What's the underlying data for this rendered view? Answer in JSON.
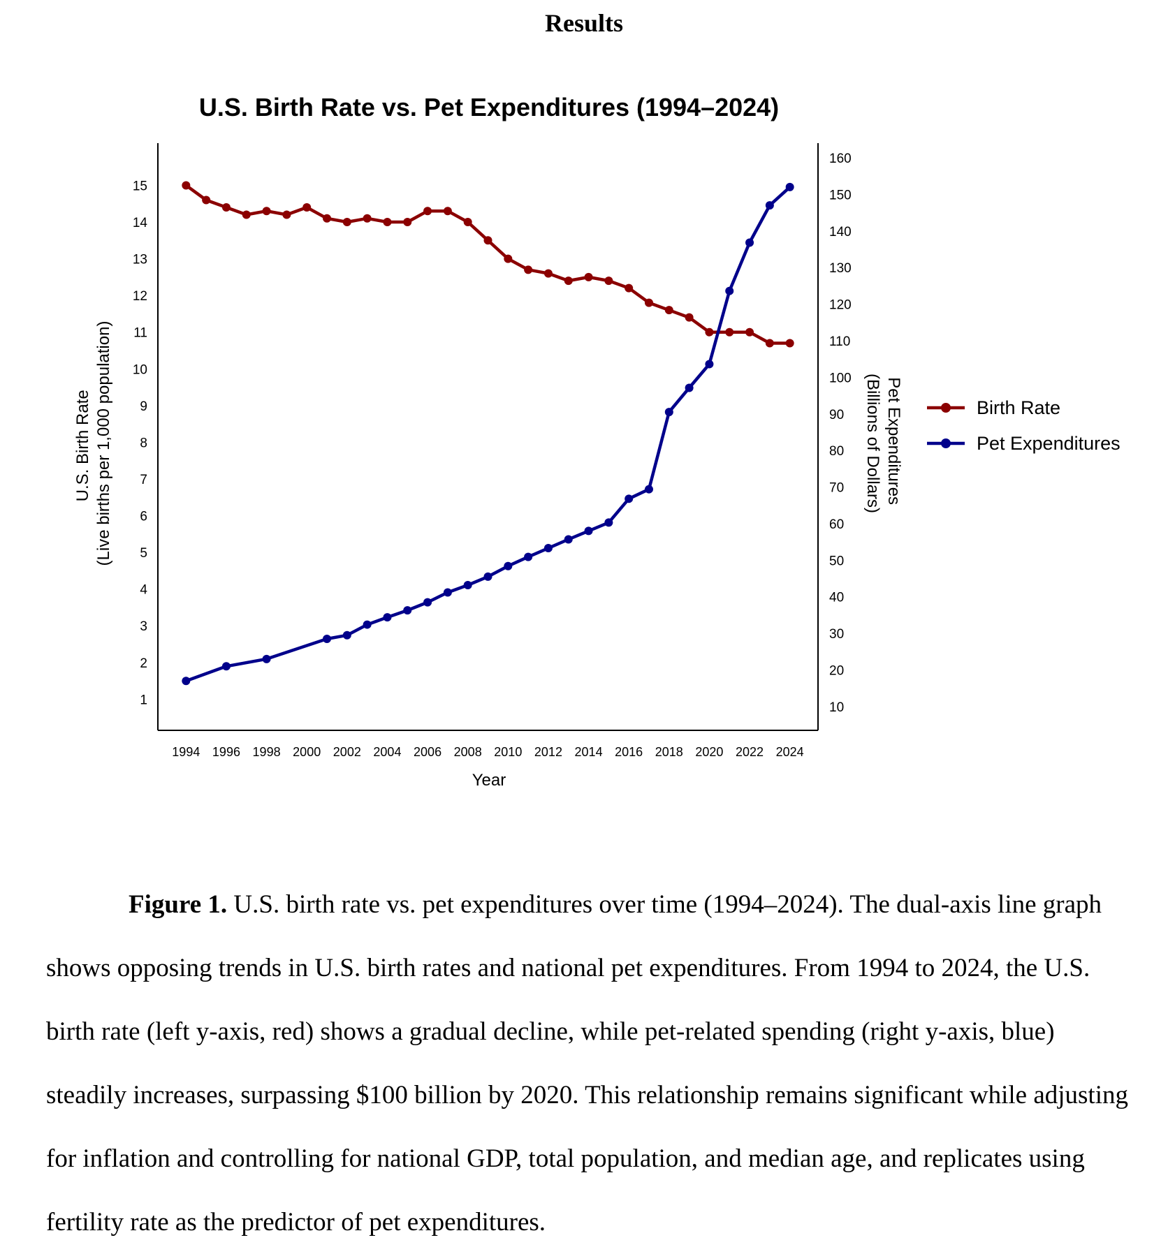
{
  "page": {
    "heading": "Results",
    "caption": {
      "label": "Figure 1.",
      "text": " U.S. birth rate vs. pet expenditures over time (1994–2024). The dual-axis line graph shows opposing trends in U.S. birth rates and national pet expenditures. From 1994 to 2024, the U.S. birth rate (left y-axis, red) shows a gradual decline, while pet-related spending (right y-axis, blue) steadily increases, surpassing $100 billion by 2020. This relationship remains significant while adjusting for inflation and controlling for national GDP, total population, and median age, and replicates using fertility rate as the predictor of pet expenditures."
    }
  },
  "chart_data": {
    "type": "line",
    "title": "U.S. Birth Rate vs. Pet Expenditures (1994–2024)",
    "xlabel": "Year",
    "ylabel_left": [
      "U.S. Birth Rate",
      "(Live births per 1,000 population)"
    ],
    "ylabel_right": [
      "Pet Expenditures",
      "(Billions of Dollars)"
    ],
    "x_ticks": [
      "1994",
      "1996",
      "1998",
      "2000",
      "2002",
      "2004",
      "2006",
      "2008",
      "2010",
      "2012",
      "2014",
      "2016",
      "2018",
      "2020",
      "2022",
      "2024"
    ],
    "y_left_ticks": [
      1,
      2,
      3,
      4,
      5,
      6,
      7,
      8,
      9,
      10,
      11,
      12,
      13,
      14,
      15
    ],
    "y_left_range": [
      0.15,
      16.15
    ],
    "y_right_ticks": [
      10,
      20,
      30,
      40,
      50,
      60,
      70,
      80,
      90,
      100,
      110,
      120,
      130,
      140,
      150,
      160
    ],
    "y_right_range": [
      3.5,
      164.0
    ],
    "x_range": [
      1992.6,
      2025.4
    ],
    "legend_position": "right",
    "series": [
      {
        "name": "Birth Rate",
        "axis": "left",
        "color": "#8b0000",
        "points": [
          [
            1994,
            15.0
          ],
          [
            1995,
            14.6
          ],
          [
            1996,
            14.4
          ],
          [
            1997,
            14.2
          ],
          [
            1998,
            14.3
          ],
          [
            1999,
            14.2
          ],
          [
            2000,
            14.4
          ],
          [
            2001,
            14.1
          ],
          [
            2002,
            14.0
          ],
          [
            2003,
            14.1
          ],
          [
            2004,
            14.0
          ],
          [
            2005,
            14.0
          ],
          [
            2006,
            14.3
          ],
          [
            2007,
            14.3
          ],
          [
            2008,
            14.0
          ],
          [
            2009,
            13.5
          ],
          [
            2010,
            13.0
          ],
          [
            2011,
            12.7
          ],
          [
            2012,
            12.6
          ],
          [
            2013,
            12.4
          ],
          [
            2014,
            12.5
          ],
          [
            2015,
            12.4
          ],
          [
            2016,
            12.2
          ],
          [
            2017,
            11.8
          ],
          [
            2018,
            11.6
          ],
          [
            2019,
            11.4
          ],
          [
            2020,
            11.0
          ],
          [
            2021,
            11.0
          ],
          [
            2022,
            11.0
          ],
          [
            2023,
            10.7
          ],
          [
            2024,
            10.7
          ]
        ]
      },
      {
        "name": "Pet Expenditures",
        "axis": "right",
        "color": "#00008b",
        "points": [
          [
            1994,
            17.0
          ],
          [
            1996,
            21.0
          ],
          [
            1998,
            23.0
          ],
          [
            2001,
            28.5
          ],
          [
            2002,
            29.5
          ],
          [
            2003,
            32.4
          ],
          [
            2004,
            34.4
          ],
          [
            2005,
            36.3
          ],
          [
            2006,
            38.5
          ],
          [
            2007,
            41.2
          ],
          [
            2008,
            43.2
          ],
          [
            2009,
            45.5
          ],
          [
            2010,
            48.4
          ],
          [
            2011,
            50.9
          ],
          [
            2012,
            53.3
          ],
          [
            2013,
            55.7
          ],
          [
            2014,
            58.0
          ],
          [
            2015,
            60.3
          ],
          [
            2016,
            66.8
          ],
          [
            2017,
            69.4
          ],
          [
            2018,
            90.5
          ],
          [
            2019,
            97.1
          ],
          [
            2020,
            103.6
          ],
          [
            2021,
            123.6
          ],
          [
            2022,
            136.8
          ],
          [
            2023,
            147.0
          ],
          [
            2024,
            152.0
          ]
        ]
      }
    ]
  }
}
